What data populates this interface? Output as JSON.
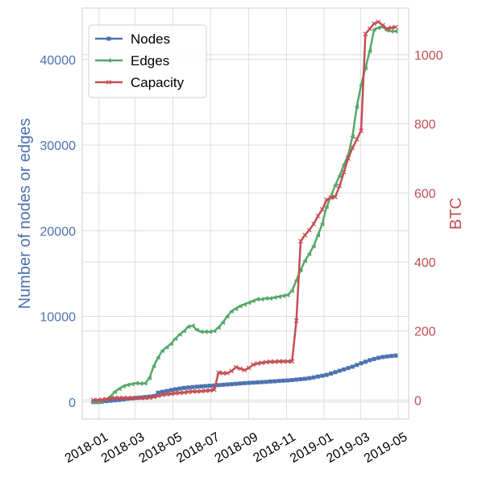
{
  "chart_data": {
    "type": "line",
    "x_tick_labels": [
      "2018-01",
      "2018-03",
      "2018-05",
      "2018-07",
      "2018-09",
      "2018-11",
      "2019-01",
      "2019-03",
      "2019-05"
    ],
    "y_label_left": "Number of nodes or edges",
    "y_label_right": "BTC",
    "ylim_left": [
      -2000,
      46000
    ],
    "ylim_right": [
      -55,
      1135
    ],
    "y_ticks_left": [
      0,
      10000,
      20000,
      30000,
      40000
    ],
    "y_ticks_right": [
      0,
      200,
      400,
      600,
      800,
      1000
    ],
    "grid": true,
    "legend_position": "top-left",
    "colors": {
      "nodes": "#4c72b0",
      "edges": "#55a868",
      "capacity": "#c44e52",
      "grid": "#dcdcdc",
      "frame": "#cfcfcf"
    },
    "x": [
      "2017-12-23",
      "2017-12-30",
      "2018-01-06",
      "2018-01-13",
      "2018-01-20",
      "2018-01-27",
      "2018-02-03",
      "2018-02-10",
      "2018-02-17",
      "2018-02-24",
      "2018-03-03",
      "2018-03-10",
      "2018-03-17",
      "2018-03-24",
      "2018-03-31",
      "2018-04-07",
      "2018-04-14",
      "2018-04-21",
      "2018-04-28",
      "2018-05-05",
      "2018-05-12",
      "2018-05-19",
      "2018-05-26",
      "2018-06-02",
      "2018-06-09",
      "2018-06-16",
      "2018-06-23",
      "2018-06-30",
      "2018-07-07",
      "2018-07-14",
      "2018-07-21",
      "2018-07-28",
      "2018-08-04",
      "2018-08-11",
      "2018-08-18",
      "2018-08-25",
      "2018-09-01",
      "2018-09-08",
      "2018-09-15",
      "2018-09-22",
      "2018-09-29",
      "2018-10-06",
      "2018-10-13",
      "2018-10-20",
      "2018-10-27",
      "2018-11-03",
      "2018-11-10",
      "2018-11-17",
      "2018-11-24",
      "2018-12-01",
      "2018-12-08",
      "2018-12-15",
      "2018-12-22",
      "2018-12-29",
      "2019-01-05",
      "2019-01-12",
      "2019-01-19",
      "2019-01-26",
      "2019-02-02",
      "2019-02-09",
      "2019-02-16",
      "2019-02-23",
      "2019-03-02",
      "2019-03-09",
      "2019-03-16",
      "2019-03-23",
      "2019-03-30",
      "2019-04-06",
      "2019-04-13",
      "2019-04-20",
      "2019-04-27"
    ],
    "series": [
      {
        "name": "Nodes",
        "axis": "left",
        "marker": "square",
        "values": [
          0,
          0,
          40,
          100,
          150,
          200,
          250,
          310,
          370,
          410,
          470,
          520,
          580,
          630,
          690,
          1080,
          1190,
          1290,
          1390,
          1480,
          1560,
          1640,
          1690,
          1740,
          1780,
          1820,
          1860,
          1890,
          1920,
          1970,
          2010,
          2050,
          2080,
          2120,
          2160,
          2200,
          2230,
          2260,
          2290,
          2320,
          2350,
          2390,
          2420,
          2460,
          2490,
          2520,
          2560,
          2610,
          2660,
          2710,
          2780,
          2870,
          2970,
          3060,
          3160,
          3320,
          3480,
          3640,
          3800,
          3960,
          4120,
          4320,
          4520,
          4700,
          4880,
          5020,
          5150,
          5250,
          5320,
          5370,
          5420
        ]
      },
      {
        "name": "Edges",
        "axis": "left",
        "marker": "triangle",
        "values": [
          0,
          0,
          120,
          300,
          650,
          1200,
          1550,
          1850,
          2000,
          2100,
          2200,
          2150,
          2180,
          2800,
          4200,
          5200,
          6000,
          6400,
          6800,
          7400,
          7900,
          8300,
          8800,
          8900,
          8400,
          8200,
          8200,
          8200,
          8300,
          8700,
          9300,
          10000,
          10600,
          10900,
          11200,
          11400,
          11600,
          11800,
          12000,
          12000,
          12100,
          12100,
          12200,
          12300,
          12400,
          12500,
          13000,
          14200,
          15400,
          16500,
          17300,
          18200,
          19500,
          20800,
          22800,
          24000,
          25300,
          26400,
          27700,
          28800,
          31000,
          34500,
          37000,
          39000,
          41000,
          43500,
          43700,
          43800,
          43400,
          43300,
          43300
        ]
      },
      {
        "name": "Capacity",
        "axis": "right",
        "marker": "x",
        "values": [
          0,
          0,
          1,
          3,
          5,
          6,
          6,
          6,
          6,
          6,
          6,
          6,
          6,
          7,
          9,
          12,
          15,
          17,
          18,
          20,
          21,
          22,
          24,
          25,
          25,
          26,
          27,
          28,
          30,
          80,
          78,
          78,
          84,
          95,
          91,
          87,
          93,
          103,
          106,
          108,
          110,
          111,
          111,
          112,
          112,
          112,
          112,
          230,
          460,
          478,
          492,
          510,
          533,
          552,
          580,
          586,
          588,
          620,
          660,
          700,
          730,
          755,
          780,
          1060,
          1075,
          1090,
          1095,
          1085,
          1075,
          1078,
          1080
        ]
      }
    ]
  }
}
